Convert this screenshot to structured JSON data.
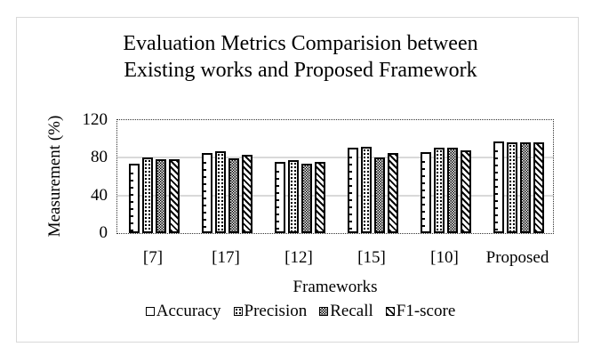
{
  "chart_data": {
    "type": "bar",
    "title": "Evaluation Metrics Comparision between Existing works and Proposed Framework",
    "title_lines": [
      "Evaluation Metrics Comparision between",
      "Existing works and Proposed Framework"
    ],
    "xlabel": "Frameworks",
    "ylabel": "Measurement (%)",
    "ylim": [
      0,
      120
    ],
    "yticks": [
      0,
      40,
      80,
      120
    ],
    "grid": true,
    "legend_position": "bottom",
    "categories": [
      "[7]",
      "[17]",
      "[12]",
      "[15]",
      "[10]",
      "Proposed"
    ],
    "series": [
      {
        "name": "Accuracy",
        "pattern": "pat-accuracy",
        "values": [
          73,
          85,
          75,
          90,
          86,
          97
        ]
      },
      {
        "name": "Precision",
        "pattern": "pat-precision",
        "values": [
          80,
          87,
          77,
          91,
          90,
          96
        ]
      },
      {
        "name": "Recall",
        "pattern": "pat-recall",
        "values": [
          78,
          79,
          73,
          80,
          90,
          96
        ]
      },
      {
        "name": "F1-score",
        "pattern": "pat-f1",
        "values": [
          78,
          83,
          75,
          85,
          88,
          96
        ]
      }
    ]
  },
  "colors": {
    "bar_outline": "#000000",
    "gridline": "#d9d9d9",
    "frame_border": "#d9d9d9",
    "background": "#ffffff"
  }
}
